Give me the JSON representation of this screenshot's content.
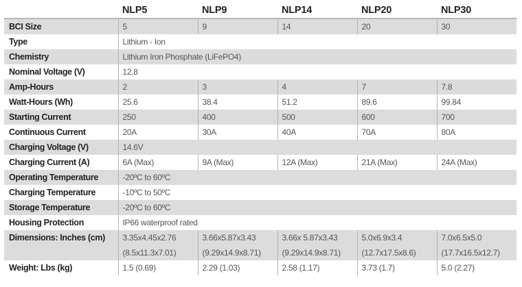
{
  "models": [
    "NLP5",
    "NLP9",
    "NLP14",
    "NLP20",
    "NLP30"
  ],
  "rows": {
    "bci_size": {
      "label": "BCI Size",
      "values": [
        "5",
        "9",
        "14",
        "20",
        "30"
      ]
    },
    "type": {
      "label": "Type",
      "value": "Lithium - Ion"
    },
    "chemistry": {
      "label": "Chemistry",
      "value": "Lithium Iron Phosphate (LiFePO4)"
    },
    "nominal_voltage": {
      "label": "Nominal Voltage (V)",
      "value": "12.8"
    },
    "amp_hours": {
      "label": "Amp-Hours",
      "values": [
        "2",
        "3",
        "4",
        "7",
        "7.8"
      ]
    },
    "watt_hours": {
      "label": "Watt-Hours (Wh)",
      "values": [
        "25.6",
        "38.4",
        "51.2",
        "89.6",
        "99.84"
      ]
    },
    "starting_current": {
      "label": "Starting Current",
      "values": [
        "250",
        "400",
        "500",
        "600",
        "700"
      ]
    },
    "continuous_current": {
      "label": "Continuous Current",
      "values": [
        "20A",
        "30A",
        "40A",
        "70A",
        "80A"
      ]
    },
    "charging_voltage": {
      "label": "Charging Voltage (V)",
      "value": "14.6V"
    },
    "charging_current": {
      "label": "Charging Current (A)",
      "values": [
        "6A (Max)",
        "9A (Max)",
        "12A (Max)",
        "21A (Max)",
        "24A (Max)"
      ]
    },
    "operating_temperature": {
      "label": "Operating Temperature",
      "value": "-20ºC to 60ºC"
    },
    "charging_temperature": {
      "label": "Charging Temperature",
      "value": "-10ºC to 50ºC"
    },
    "storage_temperature": {
      "label": "Storage Temperature",
      "value": "-20ºC to 60ºC"
    },
    "housing_protection": {
      "label": "Housing Protection",
      "value": "IP66 waterproof rated"
    },
    "dimensions": {
      "label": "Dimensions: Inches (cm)",
      "inches": [
        "3.35x4.45x2.76",
        "3.66x5.87x3.43",
        "3.66x 5.87x3.43",
        "5.0x6.9x3.4",
        "7.0x6.5x5.0"
      ],
      "cm": [
        "(8.5x11.3x7.01)",
        "(9.29x14.9x8.71)",
        "(9.29x14.9x8.71)",
        "(12.7x17.5x8.6)",
        "(17.7x16.5x12.7)"
      ]
    },
    "weight": {
      "label": "Weight: Lbs (kg)",
      "values": [
        "1.5 (0.69)",
        "2.29 (1.03)",
        "2.58 (1.17)",
        "3.73 (1.7)",
        "5.0 (2.27)"
      ]
    }
  },
  "colors": {
    "shaded_row": "#dcdcdd",
    "label_text": "#222222",
    "value_text": "#555555",
    "divider": "#b4b4b4"
  }
}
